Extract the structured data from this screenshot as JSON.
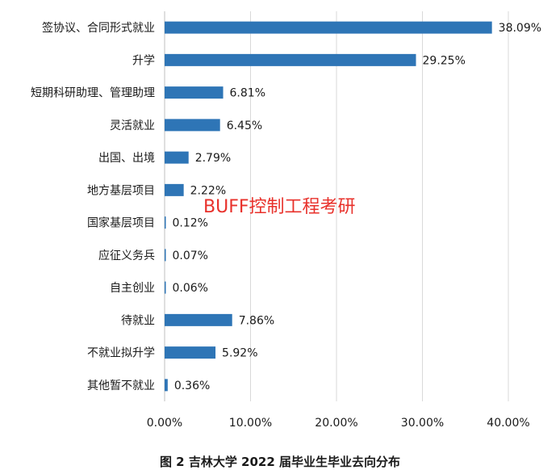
{
  "chart_data": {
    "type": "bar",
    "orientation": "horizontal",
    "categories": [
      "签协议、合同形式就业",
      "升学",
      "短期科研助理、管理助理",
      "灵活就业",
      "出国、出境",
      "地方基层项目",
      "国家基层项目",
      "应征义务兵",
      "自主创业",
      "待就业",
      "不就业拟升学",
      "其他暂不就业"
    ],
    "values": [
      38.09,
      29.25,
      6.81,
      6.45,
      2.79,
      2.22,
      0.12,
      0.07,
      0.06,
      7.86,
      5.92,
      0.36
    ],
    "data_labels": [
      "38.09%",
      "29.25%",
      "6.81%",
      "6.45%",
      "2.79%",
      "2.22%",
      "0.12%",
      "0.07%",
      "0.06%",
      "7.86%",
      "5.92%",
      "0.36%"
    ],
    "xlim": [
      0,
      40
    ],
    "xticks": [
      0,
      10,
      20,
      30,
      40
    ],
    "xtick_labels": [
      "0.00%",
      "10.00%",
      "20.00%",
      "30.00%",
      "40.00%"
    ],
    "grid": true,
    "bar_color": "#2e75b6",
    "title": "",
    "xlabel": "",
    "ylabel": ""
  },
  "watermark": "BUFF控制工程考研",
  "caption": "图 2 吉林大学 2022 届毕业生毕业去向分布",
  "colors": {
    "bar": "#2e75b6",
    "grid": "#d9d9d9",
    "text": "#1a1a1a",
    "watermark": "#e8312b"
  }
}
